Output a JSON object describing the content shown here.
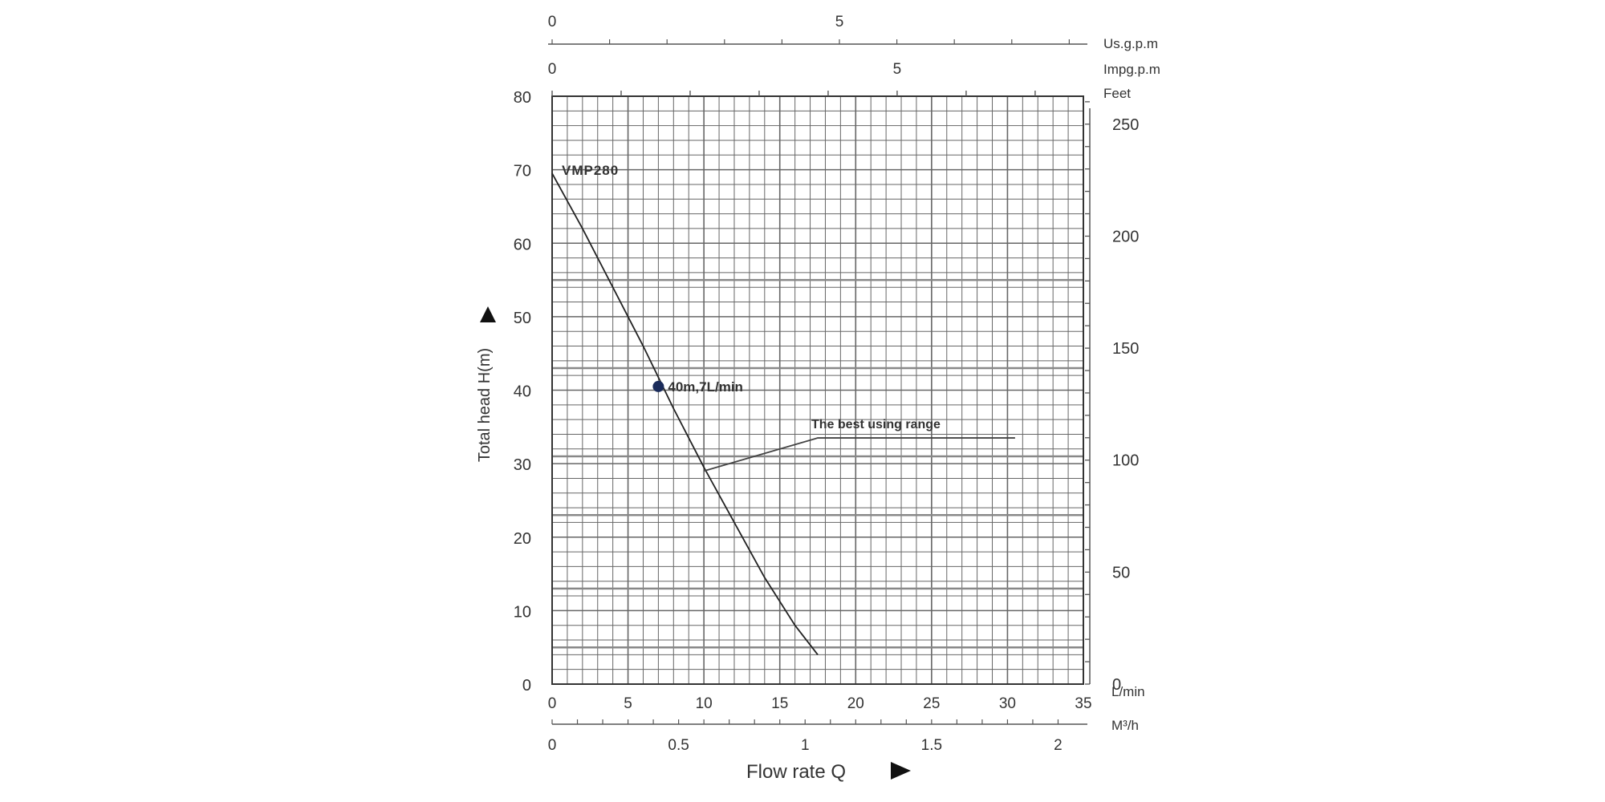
{
  "chart_data": {
    "type": "line",
    "title": "",
    "series": [
      {
        "name": "VMP280",
        "x": [
          0,
          2,
          4,
          6,
          8,
          10,
          12,
          14,
          16,
          17.5
        ],
        "y": [
          69.5,
          62,
          54,
          46,
          37.5,
          29.5,
          22,
          14.5,
          8,
          4
        ]
      }
    ],
    "marker": {
      "label": "40m,7L/min",
      "x": 7,
      "y": 40.5,
      "color": "#1a2b5a"
    },
    "annotation": {
      "label": "The best using range",
      "from_x": 10,
      "from_y": 29,
      "to_x": 17.5,
      "to_y": 33.5,
      "end_x": 30.5
    },
    "y_axis": {
      "label": "Total head H(m)",
      "ylim": [
        0,
        80
      ],
      "ticks": [
        0,
        10,
        20,
        30,
        40,
        50,
        60,
        70,
        80
      ]
    },
    "y2_axis": {
      "unit": "Feet",
      "ticks": [
        0,
        50,
        100,
        150,
        200,
        250
      ]
    },
    "x_axis": {
      "unit": "L/min",
      "xlim": [
        0,
        35
      ],
      "ticks": [
        0,
        5,
        10,
        15,
        20,
        25,
        30,
        35
      ]
    },
    "x_axis_m3h": {
      "unit": "M³/h",
      "ticks": [
        "0",
        "0.5",
        "1",
        "1.5",
        "2"
      ]
    },
    "x_axis_usgpm": {
      "unit": "Us.g.p.m",
      "ticks": [
        "0",
        "5"
      ]
    },
    "x_axis_impgpm": {
      "unit": "Impg.p.m",
      "ticks": [
        "0",
        "5"
      ]
    },
    "xlabel": "Flow rate Q",
    "grid": true,
    "line_color": "#222222",
    "grid_color": "#666666"
  }
}
